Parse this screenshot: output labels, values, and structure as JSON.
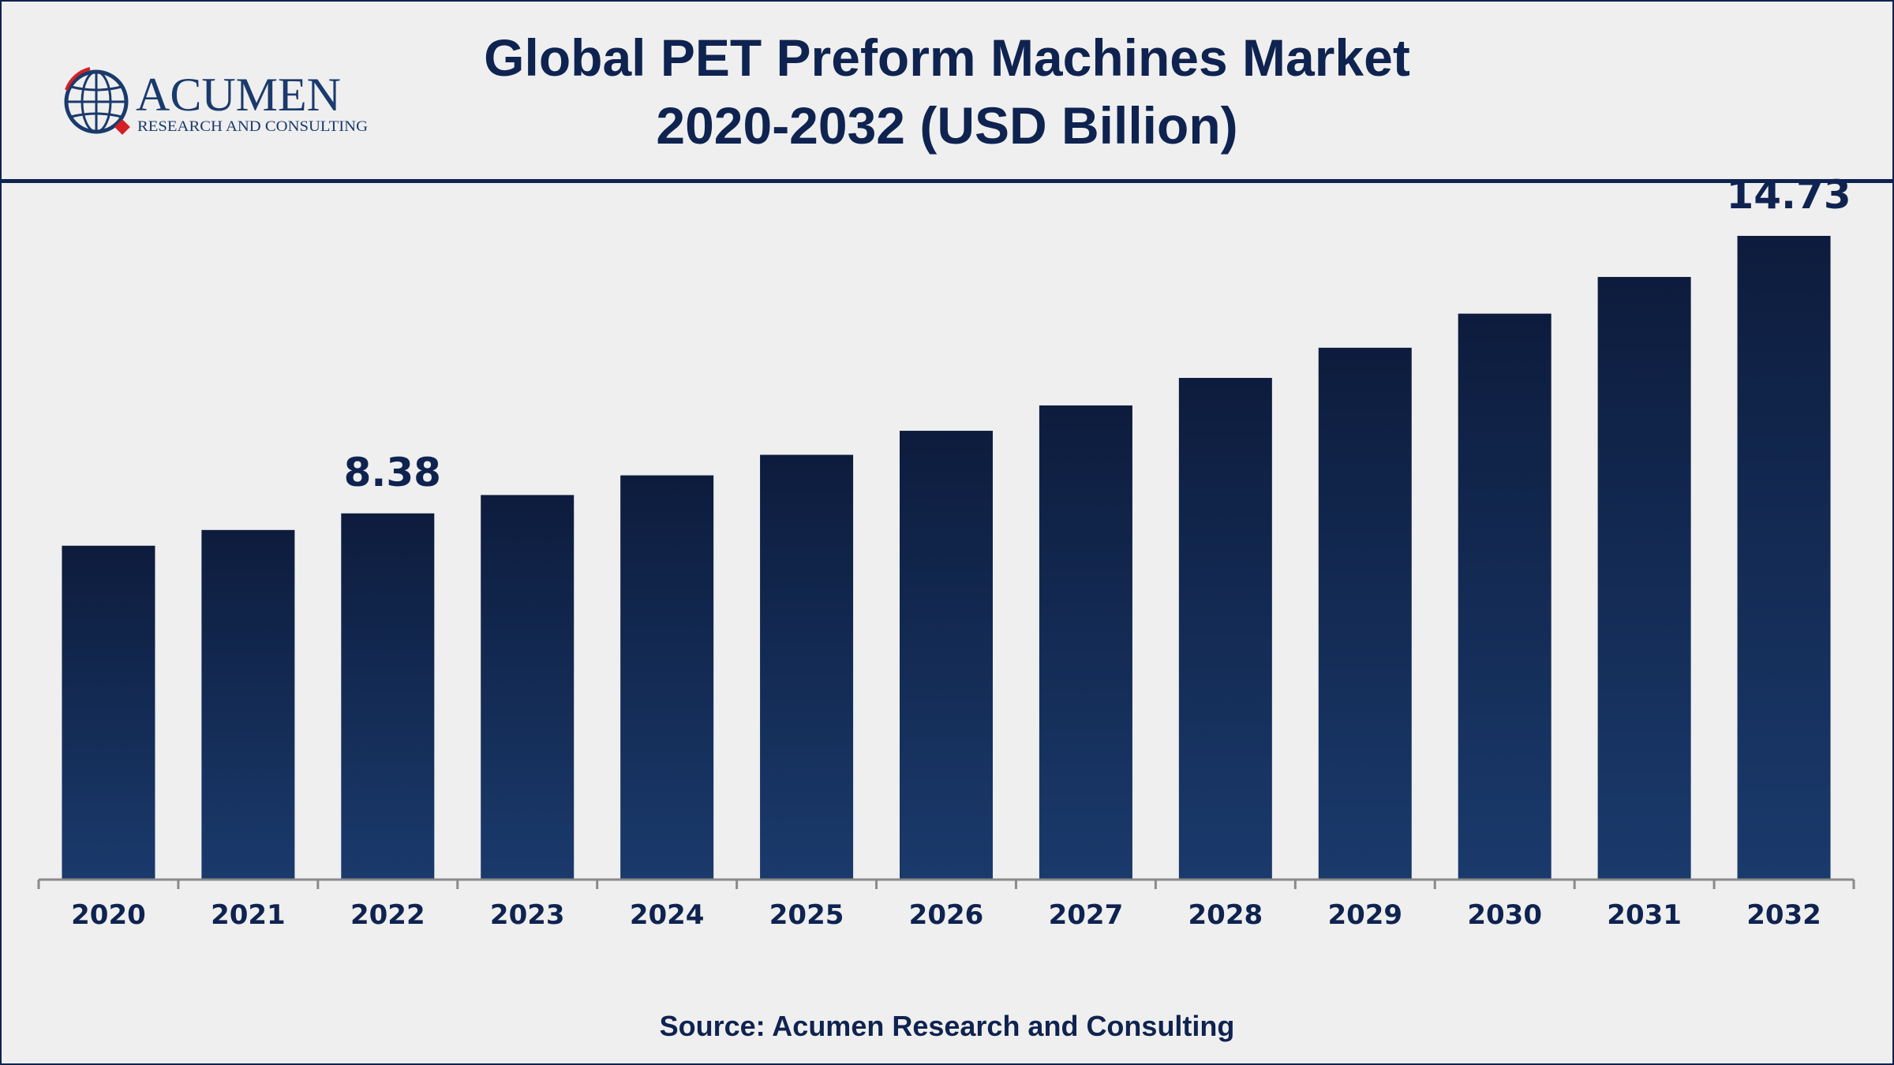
{
  "title_line1": "Global PET Preform Machines Market",
  "title_line2": "2020-2032 (USD Billion)",
  "logo": {
    "name": "ACUMEN",
    "tagline": "RESEARCH AND CONSULTING"
  },
  "source": "Source: Acumen Research and Consulting",
  "colors": {
    "bar_top": "#0d1c3d",
    "bar_bottom": "#1a3a6c",
    "text": "#0f2350",
    "axis": "#8a8a8a",
    "logo_red": "#d32027"
  },
  "chart_data": {
    "type": "bar",
    "categories": [
      "2020",
      "2021",
      "2022",
      "2023",
      "2024",
      "2025",
      "2026",
      "2027",
      "2028",
      "2029",
      "2030",
      "2031",
      "2032"
    ],
    "values": [
      7.64,
      8.0,
      8.38,
      8.8,
      9.25,
      9.72,
      10.27,
      10.85,
      11.48,
      12.17,
      12.95,
      13.79,
      14.73
    ],
    "data_labels": {
      "2022": "8.38",
      "2032": "14.73"
    },
    "xlabel": "",
    "ylabel": "",
    "ylim": [
      0,
      16.3
    ],
    "grid": false,
    "legend": "none"
  }
}
